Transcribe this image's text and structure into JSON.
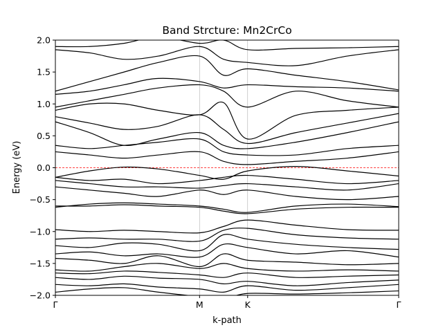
{
  "chart_data": {
    "type": "line",
    "title": "Band Strcture: Mn2CrCo",
    "xlabel": "k-path",
    "ylabel": "Energy (eV)",
    "ylim": [
      -2.0,
      2.0
    ],
    "xlim": [
      0,
      1
    ],
    "yticks": [
      -2.0,
      -1.5,
      -1.0,
      -0.5,
      0.0,
      0.5,
      1.0,
      1.5,
      2.0
    ],
    "ytick_labels": [
      "−2.0",
      "−1.5",
      "−1.0",
      "−0.5",
      "0.0",
      "0.5",
      "1.0",
      "1.5",
      "2.0"
    ],
    "high_symmetry_points": [
      {
        "label": "Γ",
        "x": 0.0
      },
      {
        "label": "M",
        "x": 0.42
      },
      {
        "label": "K",
        "x": 0.56
      },
      {
        "label": "Γ",
        "x": 1.0
      }
    ],
    "fermi_level": 0.0,
    "fermi_color": "#ff0000",
    "band_color": "#000000",
    "grid": "vertical lines at high-symmetry points",
    "series": [
      {
        "x": [
          0,
          0.1,
          0.2,
          0.3,
          0.42,
          0.49,
          0.56,
          0.7,
          0.85,
          1.0
        ],
        "values": [
          -1.95,
          -1.9,
          -1.88,
          -1.95,
          -2.02,
          -2.05,
          -1.97,
          -1.98,
          -1.96,
          -1.93
        ]
      },
      {
        "x": [
          0,
          0.1,
          0.2,
          0.3,
          0.42,
          0.49,
          0.56,
          0.7,
          0.85,
          1.0
        ],
        "values": [
          -1.83,
          -1.85,
          -1.82,
          -1.87,
          -1.9,
          -1.95,
          -1.85,
          -1.92,
          -1.88,
          -1.83
        ]
      },
      {
        "x": [
          0,
          0.1,
          0.2,
          0.3,
          0.42,
          0.49,
          0.56,
          0.7,
          0.85,
          1.0
        ],
        "values": [
          -1.72,
          -1.75,
          -1.7,
          -1.73,
          -1.75,
          -1.82,
          -1.78,
          -1.85,
          -1.8,
          -1.76
        ]
      },
      {
        "x": [
          0,
          0.1,
          0.2,
          0.3,
          0.42,
          0.49,
          0.56,
          0.7,
          0.85,
          1.0
        ],
        "values": [
          -1.65,
          -1.66,
          -1.62,
          -1.64,
          -1.68,
          -1.72,
          -1.65,
          -1.72,
          -1.7,
          -1.68
        ]
      },
      {
        "x": [
          0,
          0.1,
          0.2,
          0.3,
          0.42,
          0.49,
          0.56,
          0.7,
          0.85,
          1.0
        ],
        "values": [
          -1.6,
          -1.62,
          -1.55,
          -1.5,
          -1.58,
          -1.5,
          -1.58,
          -1.62,
          -1.6,
          -1.62
        ]
      },
      {
        "x": [
          0,
          0.1,
          0.2,
          0.3,
          0.42,
          0.49,
          0.56,
          0.7,
          0.85,
          1.0
        ],
        "values": [
          -1.42,
          -1.45,
          -1.5,
          -1.38,
          -1.55,
          -1.35,
          -1.45,
          -1.48,
          -1.52,
          -1.5
        ]
      },
      {
        "x": [
          0,
          0.1,
          0.2,
          0.3,
          0.42,
          0.49,
          0.56,
          0.7,
          0.85,
          1.0
        ],
        "values": [
          -1.35,
          -1.32,
          -1.38,
          -1.35,
          -1.4,
          -1.2,
          -1.25,
          -1.35,
          -1.3,
          -1.4
        ]
      },
      {
        "x": [
          0,
          0.1,
          0.2,
          0.3,
          0.42,
          0.49,
          0.56,
          0.7,
          0.85,
          1.0
        ],
        "values": [
          -1.22,
          -1.25,
          -1.18,
          -1.2,
          -1.3,
          -1.05,
          -1.12,
          -1.2,
          -1.25,
          -1.28
        ]
      },
      {
        "x": [
          0,
          0.1,
          0.2,
          0.3,
          0.42,
          0.49,
          0.56,
          0.7,
          0.85,
          1.0
        ],
        "values": [
          -1.12,
          -1.1,
          -1.12,
          -1.12,
          -1.15,
          -0.98,
          -0.95,
          -1.05,
          -1.1,
          -1.12
        ]
      },
      {
        "x": [
          0,
          0.1,
          0.2,
          0.3,
          0.42,
          0.49,
          0.56,
          0.7,
          0.85,
          1.0
        ],
        "values": [
          -0.97,
          -1.0,
          -0.98,
          -1.0,
          -1.02,
          -0.92,
          -0.82,
          -0.9,
          -0.97,
          -0.98
        ]
      },
      {
        "x": [
          0,
          0.1,
          0.2,
          0.3,
          0.42,
          0.49,
          0.56,
          0.7,
          0.85,
          1.0
        ],
        "values": [
          -0.62,
          -0.57,
          -0.55,
          -0.57,
          -0.6,
          -0.65,
          -0.7,
          -0.6,
          -0.57,
          -0.61
        ]
      },
      {
        "x": [
          0,
          0.1,
          0.2,
          0.3,
          0.42,
          0.49,
          0.56,
          0.7,
          0.85,
          1.0
        ],
        "values": [
          -0.6,
          -0.6,
          -0.58,
          -0.6,
          -0.62,
          -0.68,
          -0.72,
          -0.65,
          -0.62,
          -0.62
        ]
      },
      {
        "x": [
          0,
          0.1,
          0.2,
          0.3,
          0.42,
          0.49,
          0.56,
          0.7,
          0.85,
          1.0
        ],
        "values": [
          -0.3,
          -0.35,
          -0.4,
          -0.45,
          -0.35,
          -0.42,
          -0.35,
          -0.45,
          -0.5,
          -0.45
        ]
      },
      {
        "x": [
          0,
          0.1,
          0.2,
          0.3,
          0.42,
          0.49,
          0.56,
          0.7,
          0.85,
          1.0
        ],
        "values": [
          -0.2,
          -0.25,
          -0.3,
          -0.3,
          -0.32,
          -0.28,
          -0.25,
          -0.3,
          -0.35,
          -0.25
        ]
      },
      {
        "x": [
          0,
          0.1,
          0.2,
          0.3,
          0.42,
          0.49,
          0.56,
          0.7,
          0.85,
          1.0
        ],
        "values": [
          -0.15,
          -0.2,
          -0.18,
          -0.25,
          -0.2,
          -0.15,
          -0.12,
          -0.18,
          -0.25,
          -0.2
        ]
      },
      {
        "x": [
          0,
          0.1,
          0.2,
          0.3,
          0.42,
          0.49,
          0.56,
          0.7,
          0.85,
          1.0
        ],
        "values": [
          -0.15,
          -0.05,
          0.01,
          -0.02,
          -0.12,
          -0.18,
          -0.05,
          0.02,
          -0.05,
          -0.13
        ]
      },
      {
        "x": [
          0,
          0.1,
          0.2,
          0.3,
          0.42,
          0.49,
          0.56,
          0.7,
          0.85,
          1.0
        ],
        "values": [
          0.25,
          0.2,
          0.15,
          0.2,
          0.25,
          0.1,
          0.05,
          0.1,
          0.15,
          0.25
        ]
      },
      {
        "x": [
          0,
          0.1,
          0.2,
          0.3,
          0.42,
          0.49,
          0.56,
          0.7,
          0.85,
          1.0
        ],
        "values": [
          0.35,
          0.3,
          0.35,
          0.4,
          0.45,
          0.25,
          0.2,
          0.2,
          0.3,
          0.35
        ]
      },
      {
        "x": [
          0,
          0.1,
          0.2,
          0.3,
          0.42,
          0.49,
          0.56,
          0.7,
          0.85,
          1.0
        ],
        "values": [
          0.72,
          0.55,
          0.35,
          0.45,
          0.55,
          0.35,
          0.3,
          0.4,
          0.55,
          0.72
        ]
      },
      {
        "x": [
          0,
          0.1,
          0.2,
          0.3,
          0.42,
          0.49,
          0.56,
          0.7,
          0.85,
          1.0
        ],
        "values": [
          0.8,
          0.7,
          0.6,
          0.65,
          0.83,
          0.6,
          0.38,
          0.55,
          0.7,
          0.85
        ]
      },
      {
        "x": [
          0,
          0.1,
          0.2,
          0.3,
          0.42,
          0.49,
          0.56,
          0.7,
          0.85,
          1.0
        ],
        "values": [
          0.9,
          1.0,
          1.0,
          0.9,
          0.83,
          1.02,
          0.45,
          0.82,
          0.9,
          0.95
        ]
      },
      {
        "x": [
          0,
          0.1,
          0.2,
          0.3,
          0.42,
          0.49,
          0.56,
          0.7,
          0.85,
          1.0
        ],
        "values": [
          0.95,
          1.05,
          1.15,
          1.25,
          1.3,
          1.2,
          0.95,
          1.2,
          1.05,
          0.95
        ]
      },
      {
        "x": [
          0,
          0.1,
          0.2,
          0.3,
          0.42,
          0.49,
          0.56,
          0.7,
          0.85,
          1.0
        ],
        "values": [
          1.15,
          1.2,
          1.3,
          1.4,
          1.35,
          1.25,
          1.3,
          1.27,
          1.25,
          1.2
        ]
      },
      {
        "x": [
          0,
          0.1,
          0.2,
          0.3,
          0.42,
          0.49,
          0.56,
          0.7,
          0.85,
          1.0
        ],
        "values": [
          1.2,
          1.35,
          1.5,
          1.65,
          1.75,
          1.45,
          1.55,
          1.45,
          1.35,
          1.22
        ]
      },
      {
        "x": [
          0,
          0.1,
          0.2,
          0.3,
          0.42,
          0.49,
          0.56,
          0.7,
          0.85,
          1.0
        ],
        "values": [
          1.85,
          1.8,
          1.7,
          1.75,
          1.9,
          1.7,
          1.65,
          1.6,
          1.75,
          1.85
        ]
      },
      {
        "x": [
          0,
          0.1,
          0.2,
          0.3,
          0.42,
          0.49,
          0.56,
          0.7,
          0.85,
          1.0
        ],
        "values": [
          1.9,
          1.9,
          1.95,
          2.05,
          1.95,
          2.0,
          1.85,
          1.87,
          1.88,
          1.9
        ]
      }
    ]
  }
}
